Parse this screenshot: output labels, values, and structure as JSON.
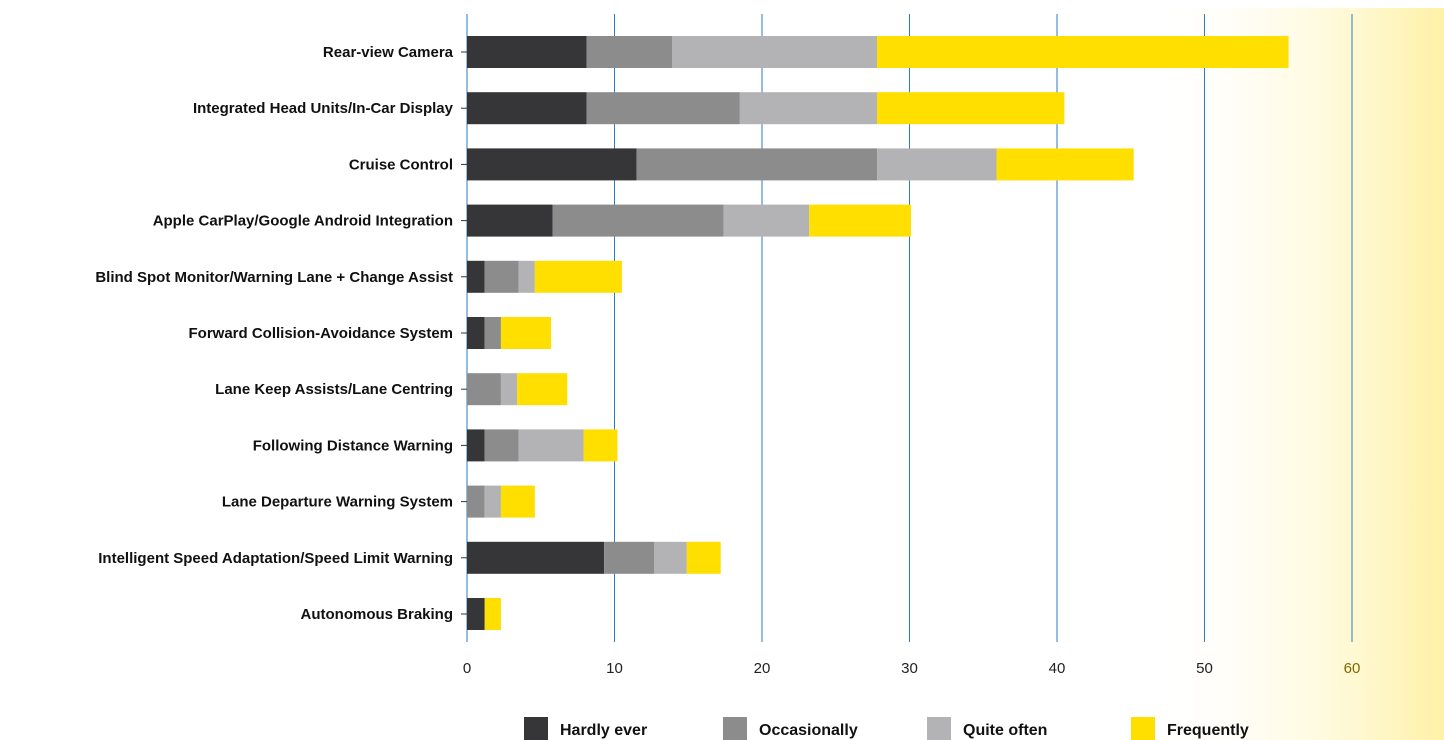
{
  "chart_data": {
    "type": "bar",
    "orientation": "horizontal",
    "stacked": true,
    "title": "",
    "xlabel": "",
    "ylabel": "",
    "xlim": [
      0,
      65
    ],
    "x_ticks": [
      0,
      10,
      20,
      30,
      40,
      50,
      60
    ],
    "grid": "vertical",
    "legend_position": "bottom",
    "categories": [
      "Rear-view Camera",
      "Integrated Head Units/In-Car Display",
      "Cruise Control",
      "Apple CarPlay/Google Android Integration",
      "Blind Spot Monitor/Warning Lane + Change Assist",
      "Forward Collision-Avoidance System",
      "Lane Keep Assists/Lane Centring",
      "Following Distance Warning",
      "Lane Departure Warning System",
      "Intelligent Speed Adaptation/Speed Limit Warning",
      "Autonomous Braking"
    ],
    "series": [
      {
        "name": "Hardly ever",
        "color": "#363538",
        "values": [
          8.1,
          8.1,
          11.5,
          5.8,
          1.2,
          1.2,
          0,
          1.2,
          0,
          9.3,
          1.2
        ]
      },
      {
        "name": "Occasionally",
        "color": "#8c8c8c",
        "values": [
          5.8,
          10.4,
          16.3,
          11.6,
          2.3,
          1.1,
          2.3,
          2.3,
          1.2,
          3.4,
          0
        ]
      },
      {
        "name": "Quite often",
        "color": "#b3b3b5",
        "values": [
          13.9,
          9.3,
          8.1,
          5.8,
          1.1,
          0,
          1.1,
          4.4,
          1.1,
          2.2,
          0
        ]
      },
      {
        "name": "Frequently",
        "color": "#ffdf00",
        "values": [
          27.9,
          12.7,
          9.3,
          6.9,
          5.9,
          3.4,
          3.4,
          2.3,
          2.3,
          2.3,
          1.1
        ]
      }
    ]
  },
  "colors": {
    "gridline": "#2b7bbf",
    "tick_text": "#222222",
    "tick_text_highlight": "#7a6a00",
    "highlight_band": "#fff4b0"
  }
}
